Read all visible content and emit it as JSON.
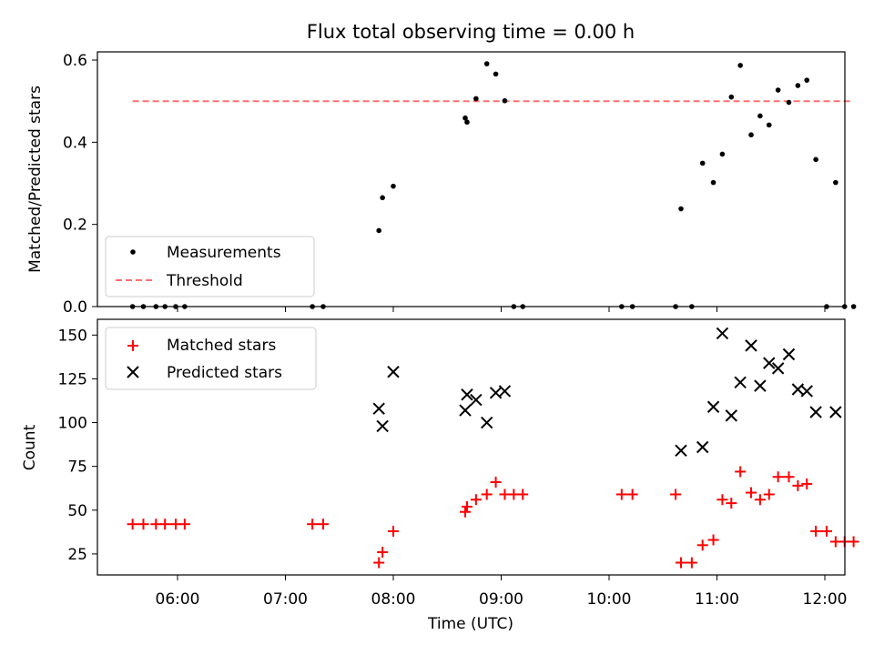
{
  "chart_data": [
    {
      "type": "scatter",
      "title": "Flux total observing time = 0.00 h",
      "ylabel": "Matched/Predicted stars",
      "xlabel": "",
      "ylim": [
        0,
        0.62
      ],
      "yticks": [
        0,
        0.2,
        0.4,
        0.6
      ],
      "ytick_labels": [
        "0.0",
        "0.2",
        "0.4",
        "0.6"
      ],
      "grid": false,
      "legend_position": "lower-left",
      "threshold": 0.5,
      "series": [
        {
          "name": "Measurements",
          "marker": "dot",
          "color": "#000000",
          "points": [
            [
              "05:35",
              0
            ],
            [
              "05:41",
              0
            ],
            [
              "05:48",
              0
            ],
            [
              "05:53",
              0
            ],
            [
              "05:59",
              0
            ],
            [
              "06:04",
              0
            ],
            [
              "07:15",
              0
            ],
            [
              "07:21",
              0
            ],
            [
              "07:52",
              0.185
            ],
            [
              "07:54",
              0.265
            ],
            [
              "08:00",
              0.293
            ],
            [
              "08:40",
              0.459
            ],
            [
              "08:41",
              0.449
            ],
            [
              "08:46",
              0.506
            ],
            [
              "08:52",
              0.591
            ],
            [
              "08:57",
              0.566
            ],
            [
              "09:02",
              0.501
            ],
            [
              "09:07",
              0
            ],
            [
              "09:12",
              0
            ],
            [
              "10:07",
              0
            ],
            [
              "10:13",
              0
            ],
            [
              "10:37",
              0
            ],
            [
              "10:40",
              0.238
            ],
            [
              "10:46",
              0
            ],
            [
              "10:52",
              0.349
            ],
            [
              "10:58",
              0.302
            ],
            [
              "11:03",
              0.371
            ],
            [
              "11:08",
              0.51
            ],
            [
              "11:13",
              0.587
            ],
            [
              "11:19",
              0.418
            ],
            [
              "11:24",
              0.464
            ],
            [
              "11:29",
              0.442
            ],
            [
              "11:34",
              0.527
            ],
            [
              "11:40",
              0.497
            ],
            [
              "11:45",
              0.538
            ],
            [
              "11:50",
              0.551
            ],
            [
              "11:55",
              0.358
            ],
            [
              "12:01",
              0
            ],
            [
              "12:06",
              0.302
            ],
            [
              "12:11",
              0
            ],
            [
              "12:16",
              0
            ]
          ]
        },
        {
          "name": "Threshold",
          "style": "dashed",
          "color": "#ff7070",
          "points": [
            [
              "05:35",
              0.5
            ],
            [
              "12:16",
              0.5
            ]
          ]
        }
      ]
    },
    {
      "type": "scatter",
      "title": "",
      "ylabel": "Count",
      "xlabel": "Time (UTC)",
      "ylim": [
        13,
        159
      ],
      "yticks": [
        25,
        50,
        75,
        100,
        125,
        150
      ],
      "ytick_labels": [
        "25",
        "50",
        "75",
        "100",
        "125",
        "150"
      ],
      "xticks": [
        "06:00",
        "07:00",
        "08:00",
        "09:00",
        "10:00",
        "11:00",
        "12:00"
      ],
      "grid": false,
      "legend_position": "upper-left",
      "series": [
        {
          "name": "Matched stars",
          "marker": "plus",
          "color": "#ff0000",
          "points": [
            [
              "05:35",
              42
            ],
            [
              "05:41",
              42
            ],
            [
              "05:48",
              42
            ],
            [
              "05:53",
              42
            ],
            [
              "05:59",
              42
            ],
            [
              "06:04",
              42
            ],
            [
              "07:15",
              42
            ],
            [
              "07:21",
              42
            ],
            [
              "07:52",
              20
            ],
            [
              "07:54",
              26
            ],
            [
              "08:00",
              38
            ],
            [
              "08:40",
              49
            ],
            [
              "08:41",
              52
            ],
            [
              "08:46",
              56
            ],
            [
              "08:52",
              59
            ],
            [
              "08:57",
              66
            ],
            [
              "09:02",
              59
            ],
            [
              "09:07",
              59
            ],
            [
              "09:12",
              59
            ],
            [
              "10:07",
              59
            ],
            [
              "10:13",
              59
            ],
            [
              "10:37",
              59
            ],
            [
              "10:40",
              20
            ],
            [
              "10:46",
              20
            ],
            [
              "10:52",
              30
            ],
            [
              "10:58",
              33
            ],
            [
              "11:03",
              56
            ],
            [
              "11:08",
              54
            ],
            [
              "11:13",
              72
            ],
            [
              "11:19",
              60
            ],
            [
              "11:24",
              56
            ],
            [
              "11:29",
              59
            ],
            [
              "11:34",
              69
            ],
            [
              "11:40",
              69
            ],
            [
              "11:45",
              64
            ],
            [
              "11:50",
              65
            ],
            [
              "11:55",
              38
            ],
            [
              "12:01",
              38
            ],
            [
              "12:06",
              32
            ],
            [
              "12:11",
              32
            ],
            [
              "12:16",
              32
            ]
          ]
        },
        {
          "name": "Predicted stars",
          "marker": "x",
          "color": "#000000",
          "points": [
            [
              "07:52",
              108
            ],
            [
              "07:54",
              98
            ],
            [
              "08:00",
              129
            ],
            [
              "08:40",
              107
            ],
            [
              "08:41",
              116
            ],
            [
              "08:46",
              113
            ],
            [
              "08:52",
              100
            ],
            [
              "08:57",
              117
            ],
            [
              "09:02",
              118
            ],
            [
              "10:40",
              84
            ],
            [
              "10:52",
              86
            ],
            [
              "10:58",
              109
            ],
            [
              "11:03",
              151
            ],
            [
              "11:08",
              104
            ],
            [
              "11:13",
              123
            ],
            [
              "11:19",
              144
            ],
            [
              "11:24",
              121
            ],
            [
              "11:29",
              134
            ],
            [
              "11:34",
              131
            ],
            [
              "11:40",
              139
            ],
            [
              "11:45",
              119
            ],
            [
              "11:50",
              118
            ],
            [
              "11:55",
              106
            ],
            [
              "12:06",
              106
            ]
          ]
        }
      ]
    }
  ]
}
